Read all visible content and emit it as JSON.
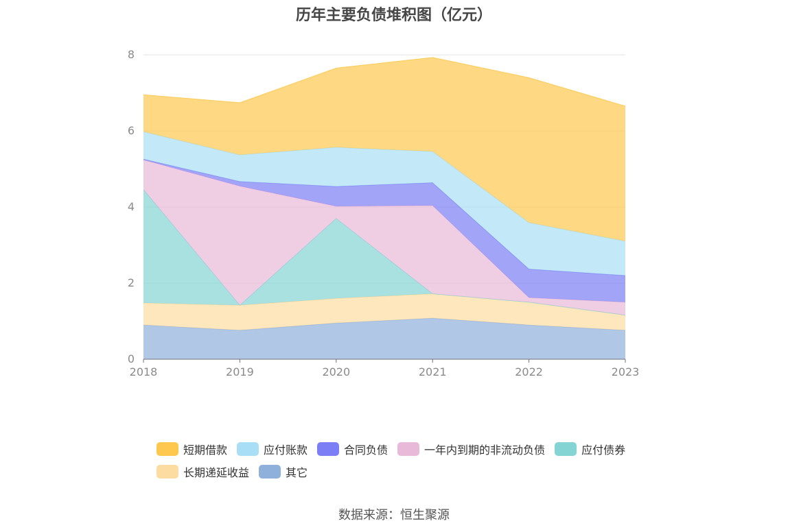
{
  "chart_data": {
    "type": "area",
    "stacked": true,
    "title": "历年主要负债堆积图（亿元）",
    "x": [
      "2018",
      "2019",
      "2020",
      "2021",
      "2022",
      "2023"
    ],
    "yticks": [
      "0",
      "2",
      "4",
      "6",
      "8"
    ],
    "ylim": [
      0,
      8
    ],
    "grid": true,
    "legend_position": "bottom",
    "series": [
      {
        "name": "其它",
        "color": "#8eb0db",
        "values": [
          0.9,
          0.76,
          0.95,
          1.08,
          0.9,
          0.76
        ]
      },
      {
        "name": "长期递延收益",
        "color": "#fddca1",
        "values": [
          0.58,
          0.66,
          0.65,
          0.64,
          0.6,
          0.4
        ]
      },
      {
        "name": "应付债券",
        "color": "#85d4d4",
        "values": [
          2.98,
          0.0,
          2.1,
          0.0,
          0.0,
          0.0
        ]
      },
      {
        "name": "一年内到期的非流动负债",
        "color": "#e8b9d9",
        "values": [
          0.78,
          3.13,
          0.32,
          2.32,
          0.12,
          0.34
        ]
      },
      {
        "name": "合同负债",
        "color": "#7b7ef5",
        "values": [
          0.02,
          0.12,
          0.52,
          0.6,
          0.75,
          0.7
        ]
      },
      {
        "name": "应付账款",
        "color": "#a9dff6",
        "values": [
          0.72,
          0.7,
          1.03,
          0.82,
          1.22,
          0.9
        ]
      },
      {
        "name": "短期借款",
        "color": "#fdc84d",
        "values": [
          0.97,
          1.37,
          2.08,
          2.47,
          3.81,
          3.55
        ]
      }
    ]
  },
  "legend": {
    "row1": [
      {
        "label": "短期借款",
        "color": "#fdc84d"
      },
      {
        "label": "应付账款",
        "color": "#a9dff6"
      },
      {
        "label": "合同负债",
        "color": "#7b7ef5"
      },
      {
        "label": "一年内到期的非流动负债",
        "color": "#e8b9d9"
      },
      {
        "label": "应付债券",
        "color": "#85d4d4"
      }
    ],
    "row2": [
      {
        "label": "长期递延收益",
        "color": "#fddca1"
      },
      {
        "label": "其它",
        "color": "#8eb0db"
      }
    ]
  },
  "source": "数据来源：恒生聚源"
}
